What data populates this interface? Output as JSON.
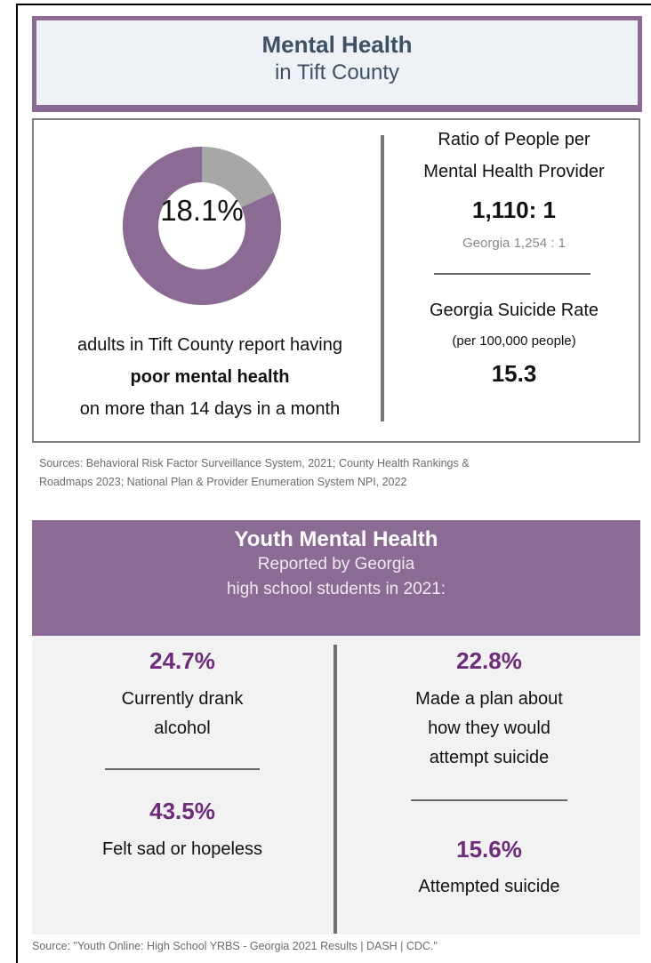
{
  "header": {
    "title": "Mental Health",
    "subtitle": "in Tift County"
  },
  "donut": {
    "value_label": "18.1%",
    "fraction": 0.181,
    "color_main": "#8b6a93",
    "color_rest": "#a7a7a7"
  },
  "adults_caption": {
    "line1": "adults in Tift County report having",
    "line2": "poor mental health",
    "line3": "on more than 14 days in a month"
  },
  "provider_ratio": {
    "label_line1": "Ratio of People per",
    "label_line2": "Mental Health Provider",
    "value": "1,110: 1",
    "georgia": "Georgia 1,254 : 1"
  },
  "suicide_rate": {
    "label": "Georgia Suicide Rate",
    "unit": "(per 100,000 people)",
    "value": "15.3"
  },
  "sources": {
    "line1": "Sources: Behavioral Risk Factor Surveillance System, 2021; County Health Rankings &",
    "line2": "Roadmaps 2023; National Plan & Provider Enumeration System NPI, 2022"
  },
  "youth": {
    "title": "Youth Mental Health",
    "subtitle_line1": "Reported by Georgia",
    "subtitle_line2": "high school students in 2021:",
    "stats": [
      {
        "value": "24.7%",
        "line1": "Currently drank",
        "line2": "alcohol"
      },
      {
        "value": "43.5%",
        "line1": "Felt sad or hopeless"
      },
      {
        "value": "22.8%",
        "line1": "Made a plan about",
        "line2": "how they would",
        "line3": "attempt suicide"
      },
      {
        "value": "15.6%",
        "line1": "Attempted suicide"
      }
    ]
  },
  "footer_source": "Source: \"Youth Online: High School YRBS - Georgia 2021 Results | DASH | CDC.\""
}
